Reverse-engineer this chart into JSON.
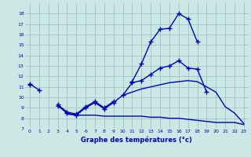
{
  "xlabel": "Graphe des températures (°c)",
  "hours": [
    0,
    1,
    2,
    3,
    4,
    5,
    6,
    7,
    8,
    9,
    10,
    11,
    12,
    13,
    14,
    15,
    16,
    17,
    18,
    19,
    20,
    21,
    22,
    23
  ],
  "line1": [
    11.3,
    10.7,
    null,
    9.3,
    8.6,
    8.4,
    9.1,
    9.6,
    9.0,
    9.6,
    null,
    11.5,
    13.2,
    15.3,
    16.5,
    16.6,
    18.0,
    17.5,
    15.3,
    null,
    null,
    null,
    null,
    null
  ],
  "line2": [
    11.2,
    null,
    null,
    9.2,
    8.5,
    8.3,
    9.0,
    9.5,
    8.9,
    9.5,
    10.2,
    11.4,
    11.6,
    12.2,
    12.8,
    13.0,
    13.5,
    12.8,
    12.7,
    10.5,
    null,
    null,
    null,
    null
  ],
  "line3": [
    null,
    null,
    null,
    null,
    8.4,
    8.3,
    8.3,
    8.3,
    8.2,
    8.2,
    8.2,
    8.2,
    8.2,
    8.1,
    8.1,
    8.0,
    8.0,
    7.9,
    7.8,
    7.7,
    7.6,
    7.6,
    7.6,
    7.4
  ],
  "line4": [
    null,
    null,
    null,
    null,
    null,
    null,
    null,
    null,
    null,
    null,
    10.2,
    10.5,
    10.8,
    11.0,
    11.2,
    11.4,
    11.5,
    11.6,
    11.5,
    11.0,
    10.5,
    9.1,
    8.5,
    7.5
  ],
  "ylim": [
    7,
    19
  ],
  "yticks": [
    7,
    8,
    9,
    10,
    11,
    12,
    13,
    14,
    15,
    16,
    17,
    18
  ],
  "bg_color": "#cce8e4",
  "line_color": "#0000bb",
  "grid_color": "#99bbbb"
}
